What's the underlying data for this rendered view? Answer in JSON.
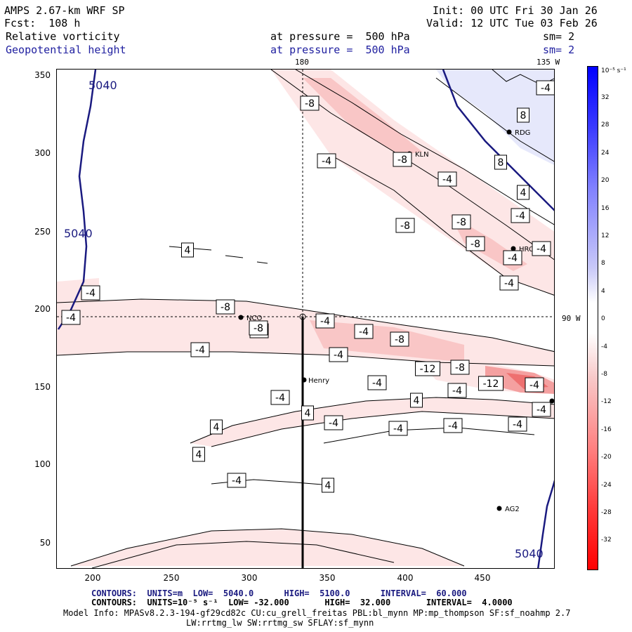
{
  "header": {
    "left_line1": "AMPS 2.67-km WRF SP",
    "left_line2": "Fcst:  108 h",
    "field1": "Relative vorticity",
    "field2": "Geopotential height",
    "pressure1": "at pressure =  500 hPa",
    "pressure2": "at pressure =  500 hPa",
    "sm1": "sm= 2",
    "sm2": "sm= 2",
    "init": "Init: 00 UTC Fri 30 Jan 26",
    "valid": "Valid: 12 UTC Tue 03 Feb 26"
  },
  "map": {
    "top_lon_180": "180",
    "top_lon_135w": "135 W",
    "right_lat_90w": "90 W",
    "x_ticks": [
      "200",
      "250",
      "300",
      "350",
      "400",
      "450"
    ],
    "y_ticks": [
      "350",
      "300",
      "250",
      "200",
      "150",
      "100",
      "50"
    ],
    "stations": [
      {
        "name": "KLN"
      },
      {
        "name": "RDG"
      },
      {
        "name": "HRC"
      },
      {
        "name": "NCO"
      },
      {
        "name": "Henry"
      },
      {
        "name": "AG2"
      }
    ],
    "height_labels": [
      "5040",
      "5040",
      "5040"
    ],
    "vort_labels": [
      "-8",
      "-8",
      "-4",
      "-4",
      "-8",
      "-8",
      "-4",
      "8",
      "8",
      "4",
      "-4",
      "-8",
      "-8",
      "-4",
      "-4",
      "4",
      "-4",
      "-4",
      "-4",
      "-8",
      "-8",
      "-4",
      "-4",
      "-8",
      "-12",
      "-8",
      "-12",
      "-4",
      "-4",
      "-4",
      "-4",
      "-4",
      "-4",
      "4",
      "-4",
      "-4",
      "4",
      "-4",
      "-4",
      "-4",
      "4",
      "4",
      "4",
      "-4"
    ]
  },
  "colorbar": {
    "unit_label": "10⁻⁵ s⁻¹",
    "labels": [
      "32",
      "28",
      "24",
      "20",
      "16",
      "12",
      "8",
      "4",
      "0",
      "-4",
      "-8",
      "-12",
      "-16",
      "-20",
      "-24",
      "-28",
      "-32"
    ]
  },
  "footer": {
    "line1": "CONTOURS:  UNITS=m  LOW=  5040.0      HIGH=  5100.0      INTERVAL=  60.000",
    "line2": "CONTOURS:  UNITS=10⁻⁵ s⁻¹  LOW= -32.000       HIGH=  32.000       INTERVAL=  4.0000",
    "line3": "Model Info: MPASv8.2.3-194-gf29cd82c CU:cu_grell_freitas PBL:bl_mynn MP:mp_thompson SF:sf_noahmp 2.7",
    "line4": "LW:rrtmg_lw SW:rrtmg_sw SFLAY:sf_mynn"
  }
}
